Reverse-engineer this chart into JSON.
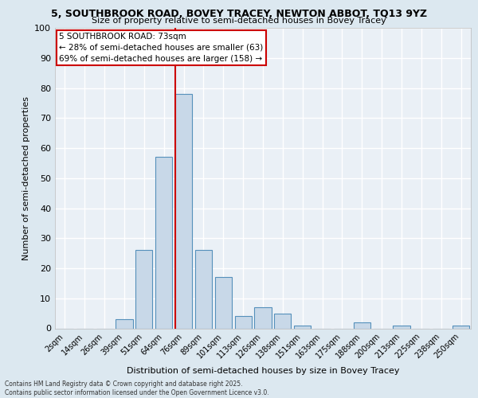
{
  "title_line1": "5, SOUTHBROOK ROAD, BOVEY TRACEY, NEWTON ABBOT, TQ13 9YZ",
  "title_line2": "Size of property relative to semi-detached houses in Bovey Tracey",
  "xlabel": "Distribution of semi-detached houses by size in Bovey Tracey",
  "ylabel": "Number of semi-detached properties",
  "footer_line1": "Contains HM Land Registry data © Crown copyright and database right 2025.",
  "footer_line2": "Contains public sector information licensed under the Open Government Licence v3.0.",
  "bin_labels": [
    "2sqm",
    "14sqm",
    "26sqm",
    "39sqm",
    "51sqm",
    "64sqm",
    "76sqm",
    "89sqm",
    "101sqm",
    "113sqm",
    "126sqm",
    "138sqm",
    "151sqm",
    "163sqm",
    "175sqm",
    "188sqm",
    "200sqm",
    "213sqm",
    "225sqm",
    "238sqm",
    "250sqm"
  ],
  "bar_values": [
    0,
    0,
    0,
    3,
    26,
    57,
    78,
    26,
    17,
    4,
    7,
    5,
    1,
    0,
    0,
    2,
    0,
    1,
    0,
    0,
    1
  ],
  "bar_color": "#c8d8e8",
  "bar_edge_color": "#5590bb",
  "property_line_color": "#cc0000",
  "annotation_title": "5 SOUTHBROOK ROAD: 73sqm",
  "annotation_line1": "← 28% of semi-detached houses are smaller (63)",
  "annotation_line2": "69% of semi-detached houses are larger (158) →",
  "annotation_box_color": "#ffffff",
  "annotation_box_edge_color": "#cc0000",
  "ylim": [
    0,
    100
  ],
  "yticks": [
    0,
    10,
    20,
    30,
    40,
    50,
    60,
    70,
    80,
    90,
    100
  ],
  "bg_color": "#dce8f0",
  "plot_bg_color": "#eaf0f6",
  "grid_color": "#ffffff",
  "title1_fontsize": 9,
  "title2_fontsize": 8,
  "ylabel_fontsize": 8,
  "xlabel_fontsize": 8,
  "tick_fontsize": 7,
  "annot_fontsize": 7.5,
  "footer_fontsize": 5.5
}
